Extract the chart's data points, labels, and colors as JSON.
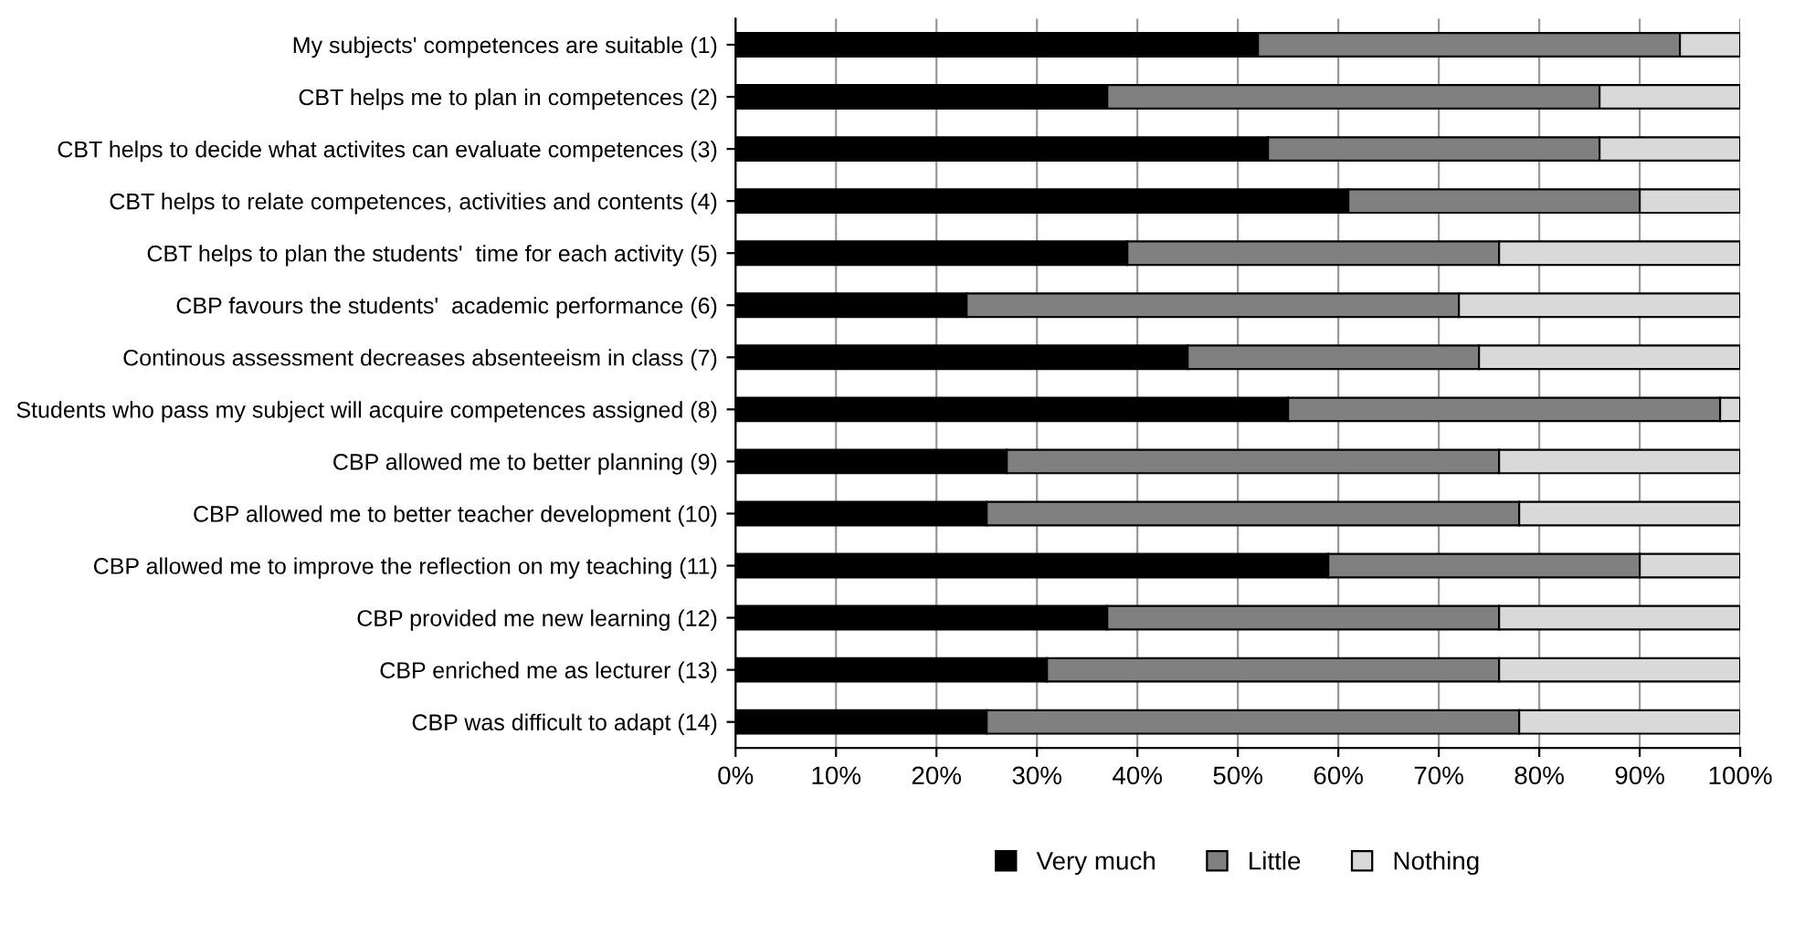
{
  "chart_data": {
    "type": "bar",
    "orientation": "horizontal",
    "stacked": true,
    "categories": [
      "My subjects' competences are suitable (1)",
      "CBT helps me to plan in competences (2)",
      "CBT helps to decide what activites can evaluate competences (3)",
      "CBT helps to relate competences, activities and contents (4)",
      "CBT helps to plan the students'  time for each activity (5)",
      "CBP favours the students'  academic performance (6)",
      "Continous assessment decreases absenteeism in class (7)",
      "Students who pass my subject will acquire competences assigned (8)",
      "CBP allowed me to better planning (9)",
      "CBP allowed me to better teacher development (10)",
      "CBP allowed me to improve the reflection on my teaching (11)",
      "CBP provided me new learning (12)",
      "CBP enriched me as lecturer (13)",
      "CBP was difficult to adapt (14)"
    ],
    "series": [
      {
        "name": "Very much",
        "color": "#000000",
        "values": [
          52,
          37,
          53,
          61,
          39,
          23,
          45,
          55,
          27,
          25,
          59,
          37,
          31,
          25
        ]
      },
      {
        "name": "Little",
        "color": "#808080",
        "values": [
          42,
          49,
          33,
          29,
          37,
          49,
          29,
          43,
          49,
          53,
          31,
          39,
          45,
          53
        ]
      },
      {
        "name": "Nothing",
        "color": "#d9d9d9",
        "values": [
          6,
          14,
          14,
          10,
          24,
          28,
          26,
          2,
          24,
          22,
          10,
          24,
          24,
          22
        ]
      }
    ],
    "xlim": [
      0,
      100
    ],
    "xticks": [
      {
        "value": 0,
        "label": "0%"
      },
      {
        "value": 10,
        "label": "10%"
      },
      {
        "value": 20,
        "label": "20%"
      },
      {
        "value": 30,
        "label": "30%"
      },
      {
        "value": 40,
        "label": "40%"
      },
      {
        "value": 50,
        "label": "50%"
      },
      {
        "value": 60,
        "label": "60%"
      },
      {
        "value": 70,
        "label": "70%"
      },
      {
        "value": 80,
        "label": "80%"
      },
      {
        "value": 90,
        "label": "90%"
      },
      {
        "value": 100,
        "label": "100%"
      }
    ],
    "grid": "x",
    "legend": "bottom"
  }
}
